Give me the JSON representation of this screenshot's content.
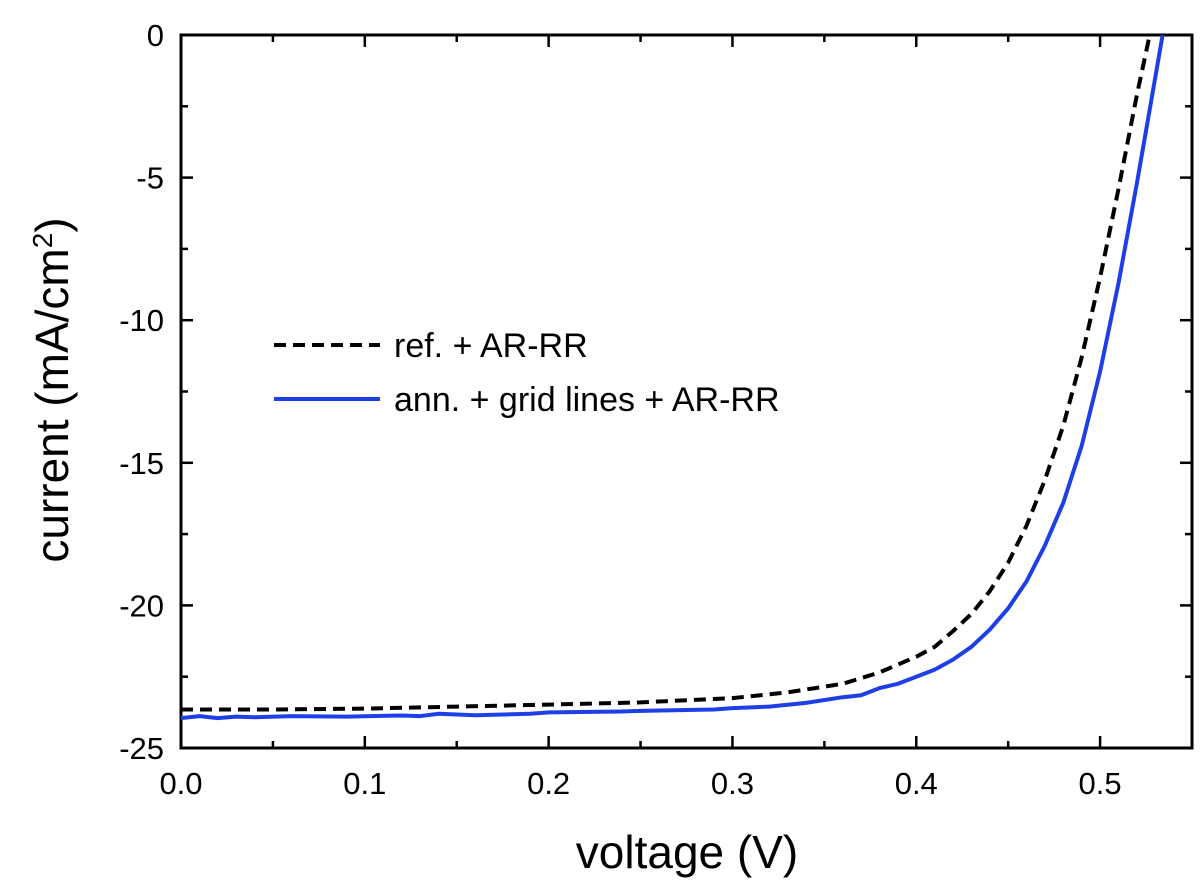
{
  "chart_data": {
    "type": "line",
    "title": "",
    "xlabel": "voltage (V)",
    "ylabel_main": "current (mA/cm",
    "ylabel_sup": "2",
    "ylabel_close": ")",
    "xlim": [
      0.0,
      0.55
    ],
    "ylim": [
      -25,
      0
    ],
    "xticks": [
      0.0,
      0.1,
      0.2,
      0.3,
      0.4,
      0.5
    ],
    "xtick_labels": [
      "0.0",
      "0.1",
      "0.2",
      "0.3",
      "0.4",
      "0.5"
    ],
    "yticks": [
      0,
      -5,
      -10,
      -15,
      -20,
      -25
    ],
    "ytick_labels": [
      "0",
      "-5",
      "-10",
      "-15",
      "-20",
      "-25"
    ],
    "grid": false,
    "legend_position": "left-center",
    "series": [
      {
        "name": "ref. + AR-RR",
        "color": "#000000",
        "dash": "dashed",
        "points": [
          [
            0.0,
            -23.65
          ],
          [
            0.05,
            -23.65
          ],
          [
            0.1,
            -23.62
          ],
          [
            0.15,
            -23.55
          ],
          [
            0.2,
            -23.48
          ],
          [
            0.25,
            -23.4
          ],
          [
            0.3,
            -23.25
          ],
          [
            0.33,
            -23.05
          ],
          [
            0.36,
            -22.75
          ],
          [
            0.38,
            -22.35
          ],
          [
            0.4,
            -21.8
          ],
          [
            0.41,
            -21.45
          ],
          [
            0.42,
            -20.9
          ],
          [
            0.43,
            -20.3
          ],
          [
            0.44,
            -19.5
          ],
          [
            0.45,
            -18.5
          ],
          [
            0.46,
            -17.2
          ],
          [
            0.47,
            -15.6
          ],
          [
            0.48,
            -13.7
          ],
          [
            0.49,
            -11.3
          ],
          [
            0.5,
            -8.5
          ],
          [
            0.51,
            -5.4
          ],
          [
            0.52,
            -2.1
          ],
          [
            0.527,
            0.0
          ]
        ]
      },
      {
        "name": "ann. + grid lines + AR-RR",
        "color": "#1f3fe6",
        "dash": "solid",
        "points": [
          [
            0.0,
            -23.95
          ],
          [
            0.01,
            -23.88
          ],
          [
            0.02,
            -23.95
          ],
          [
            0.03,
            -23.9
          ],
          [
            0.04,
            -23.92
          ],
          [
            0.06,
            -23.88
          ],
          [
            0.09,
            -23.9
          ],
          [
            0.12,
            -23.86
          ],
          [
            0.13,
            -23.88
          ],
          [
            0.14,
            -23.8
          ],
          [
            0.16,
            -23.85
          ],
          [
            0.19,
            -23.8
          ],
          [
            0.2,
            -23.75
          ],
          [
            0.24,
            -23.72
          ],
          [
            0.25,
            -23.7
          ],
          [
            0.29,
            -23.65
          ],
          [
            0.3,
            -23.6
          ],
          [
            0.32,
            -23.55
          ],
          [
            0.34,
            -23.42
          ],
          [
            0.36,
            -23.22
          ],
          [
            0.37,
            -23.15
          ],
          [
            0.38,
            -22.9
          ],
          [
            0.39,
            -22.75
          ],
          [
            0.4,
            -22.5
          ],
          [
            0.41,
            -22.25
          ],
          [
            0.42,
            -21.9
          ],
          [
            0.43,
            -21.45
          ],
          [
            0.44,
            -20.85
          ],
          [
            0.45,
            -20.1
          ],
          [
            0.46,
            -19.15
          ],
          [
            0.47,
            -17.9
          ],
          [
            0.48,
            -16.4
          ],
          [
            0.49,
            -14.4
          ],
          [
            0.5,
            -11.8
          ],
          [
            0.51,
            -8.7
          ],
          [
            0.52,
            -5.2
          ],
          [
            0.53,
            -1.5
          ],
          [
            0.534,
            0.0
          ]
        ]
      }
    ]
  }
}
